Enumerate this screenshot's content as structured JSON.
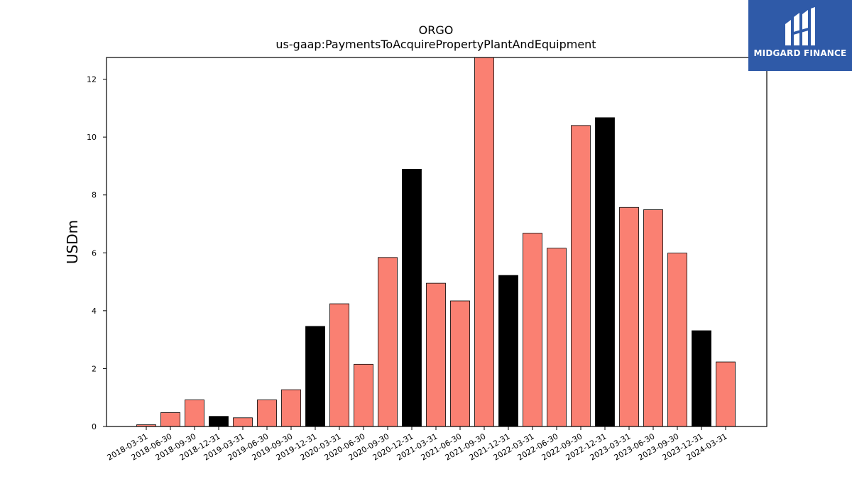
{
  "chart_data": {
    "type": "bar",
    "title": "ORGO",
    "subtitle": "us-gaap:PaymentsToAcquirePropertyPlantAndEquipment",
    "xlabel": "",
    "ylabel": "USDm",
    "ylim": [
      0,
      12.75
    ],
    "yticks": [
      "0",
      "2",
      "4",
      "6",
      "8",
      "10",
      "12"
    ],
    "categories": [
      "2018-03-31",
      "2018-06-30",
      "2018-09-30",
      "2018-12-31",
      "2019-03-31",
      "2019-06-30",
      "2019-09-30",
      "2019-12-31",
      "2020-03-31",
      "2020-06-30",
      "2020-09-30",
      "2020-12-31",
      "2021-03-31",
      "2021-06-30",
      "2021-09-30",
      "2021-12-31",
      "2022-03-31",
      "2022-06-30",
      "2022-09-30",
      "2022-12-31",
      "2023-03-31",
      "2023-06-30",
      "2023-09-30",
      "2023-12-31",
      "2024-03-31"
    ],
    "values": [
      0.06,
      0.48,
      0.92,
      0.35,
      0.3,
      0.92,
      1.27,
      3.46,
      4.24,
      2.15,
      5.84,
      8.89,
      4.95,
      4.34,
      12.8,
      5.22,
      6.68,
      6.16,
      10.4,
      10.67,
      7.57,
      7.49,
      5.99,
      3.31,
      2.23
    ],
    "colors": {
      "quarter": "#fa8072",
      "year_end": "#000000",
      "edge": "#000000"
    },
    "year_end_marked": true,
    "grid": false,
    "legend": "none"
  },
  "brand": {
    "name": "MIDGARD FINANCE",
    "background": "#2f5aa8",
    "foreground": "#ffffff"
  }
}
